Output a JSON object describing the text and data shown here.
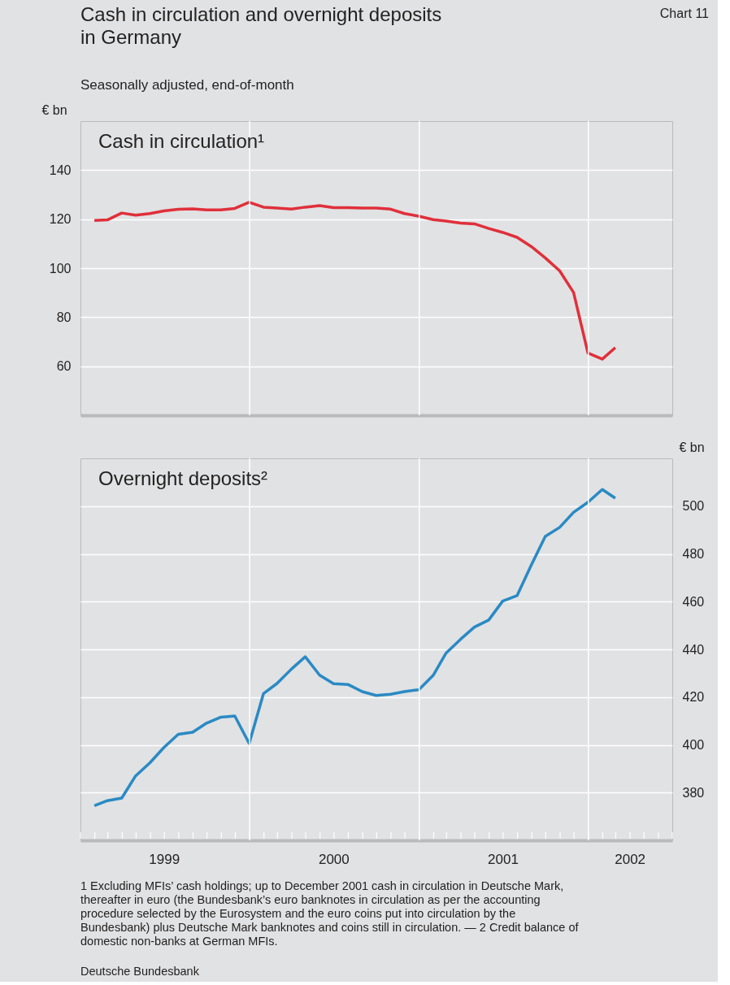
{
  "chart_data": [
    {
      "type": "line",
      "title": "Cash in circulation and overnight deposits in Germany",
      "subtitle": "Seasonally adjusted, end-of-month",
      "ylabel": "€ bn",
      "annotations": [
        "Chart 11"
      ],
      "x": [
        "1999-01-31",
        "1999-02-28",
        "1999-03-31",
        "1999-04-30",
        "1999-05-31",
        "1999-06-30",
        "1999-07-31",
        "1999-08-31",
        "1999-09-30",
        "1999-10-31",
        "1999-11-30",
        "1999-12-31",
        "2000-01-31",
        "2000-02-29",
        "2000-03-31",
        "2000-04-30",
        "2000-05-31",
        "2000-06-30",
        "2000-07-31",
        "2000-08-31",
        "2000-09-30",
        "2000-10-31",
        "2000-11-30",
        "2000-12-31",
        "2001-01-31",
        "2001-02-28",
        "2001-03-31",
        "2001-04-30",
        "2001-05-31",
        "2001-06-30",
        "2001-07-31",
        "2001-08-31",
        "2001-09-30",
        "2001-10-31",
        "2001-11-30",
        "2001-12-31",
        "2002-01-31",
        "2002-02-28"
      ],
      "series": [
        {
          "name": "Cash in circulation¹",
          "color": "#e0303a",
          "values": [
            119.5,
            119.7,
            122.5,
            121.6,
            122.3,
            123.4,
            124.0,
            124.2,
            123.8,
            123.8,
            124.4,
            126.9,
            124.9,
            124.5,
            124.1,
            124.9,
            125.5,
            124.7,
            124.7,
            124.5,
            124.5,
            124.1,
            122.3,
            121.2,
            119.8,
            119.2,
            118.4,
            118.1,
            116.2,
            114.6,
            112.6,
            108.8,
            104.2,
            98.9,
            90.1,
            65.4,
            62.9,
            67.6
          ]
        }
      ],
      "xlim": [
        "1999-01-01",
        "2002-07-01"
      ],
      "ylim": [
        40,
        160
      ],
      "yticks": [
        60,
        80,
        100,
        120,
        140
      ],
      "grid": true,
      "tick_labels": "y"
    },
    {
      "type": "line",
      "ylabel": "€ bn",
      "annotations": [
        "1 Excluding MFIs’ cash holdings; up to December 2001 cash in circulation in Deutsche Mark, thereafter in euro (the Bundesbank’s euro banknotes in circulation as per the accounting procedure selected by the Eurosystem and the euro coins put into circulation by the Bundesbank) plus Deutsche Mark banknotes and coins still in circulation. — 2 Credit balance of domestic non-banks at German MFIs.",
        "Deutsche Bundesbank"
      ],
      "x": [
        "1999-01-31",
        "1999-02-28",
        "1999-03-31",
        "1999-04-30",
        "1999-05-31",
        "1999-06-30",
        "1999-07-31",
        "1999-08-31",
        "1999-09-30",
        "1999-10-31",
        "1999-11-30",
        "1999-12-31",
        "2000-01-31",
        "2000-02-29",
        "2000-03-31",
        "2000-04-30",
        "2000-05-31",
        "2000-06-30",
        "2000-07-31",
        "2000-08-31",
        "2000-09-30",
        "2000-10-31",
        "2000-11-30",
        "2000-12-31",
        "2001-01-31",
        "2001-02-28",
        "2001-03-31",
        "2001-04-30",
        "2001-05-31",
        "2001-06-30",
        "2001-07-31",
        "2001-08-31",
        "2001-09-30",
        "2001-10-31",
        "2001-11-30",
        "2001-12-31",
        "2002-01-31",
        "2002-02-28"
      ],
      "series": [
        {
          "name": "Overnight deposits²",
          "color": "#2a8ac4",
          "values": [
            374.5,
            376.6,
            377.7,
            387.0,
            392.5,
            398.9,
            404.4,
            405.3,
            409.1,
            411.6,
            412.1,
            400.6,
            421.5,
            425.7,
            431.7,
            436.9,
            429.2,
            425.6,
            425.3,
            422.3,
            420.7,
            421.2,
            422.3,
            423.1,
            429.1,
            438.5,
            444.2,
            449.3,
            452.3,
            460.2,
            462.5,
            475.4,
            487.3,
            491.1,
            497.4,
            501.6,
            507.0,
            503.3
          ]
        }
      ],
      "xlim": [
        "1999-01-01",
        "2002-07-01"
      ],
      "ylim": [
        360,
        520
      ],
      "yticks": [
        380,
        400,
        420,
        440,
        460,
        480,
        500
      ],
      "xticks": [
        {
          "value": "1999-01-01",
          "label": null
        },
        {
          "value": "1999-02-01",
          "label": null
        },
        {
          "value": "1999-03-01",
          "label": null
        },
        {
          "value": "1999-04-01",
          "label": null
        },
        {
          "value": "1999-05-01",
          "label": null
        },
        {
          "value": "1999-06-01",
          "label": null
        },
        {
          "value": "1999-07-01",
          "label": "1999"
        },
        {
          "value": "1999-08-01",
          "label": null
        },
        {
          "value": "1999-09-01",
          "label": null
        },
        {
          "value": "1999-10-01",
          "label": null
        },
        {
          "value": "1999-11-01",
          "label": null
        },
        {
          "value": "1999-12-01",
          "label": null
        },
        {
          "value": "2000-01-01",
          "label": null
        },
        {
          "value": "2000-02-01",
          "label": null
        },
        {
          "value": "2000-03-01",
          "label": null
        },
        {
          "value": "2000-04-01",
          "label": null
        },
        {
          "value": "2000-05-01",
          "label": null
        },
        {
          "value": "2000-06-01",
          "label": null
        },
        {
          "value": "2000-07-01",
          "label": "2000"
        },
        {
          "value": "2000-08-01",
          "label": null
        },
        {
          "value": "2000-09-01",
          "label": null
        },
        {
          "value": "2000-10-01",
          "label": null
        },
        {
          "value": "2000-11-01",
          "label": null
        },
        {
          "value": "2000-12-01",
          "label": null
        },
        {
          "value": "2001-01-01",
          "label": null
        },
        {
          "value": "2001-02-01",
          "label": null
        },
        {
          "value": "2001-03-01",
          "label": null
        },
        {
          "value": "2001-04-01",
          "label": null
        },
        {
          "value": "2001-05-01",
          "label": null
        },
        {
          "value": "2001-06-01",
          "label": null
        },
        {
          "value": "2001-07-01",
          "label": "2001"
        },
        {
          "value": "2001-08-01",
          "label": null
        },
        {
          "value": "2001-09-01",
          "label": null
        },
        {
          "value": "2001-10-01",
          "label": null
        },
        {
          "value": "2001-11-01",
          "label": null
        },
        {
          "value": "2001-12-01",
          "label": null
        },
        {
          "value": "2002-01-01",
          "label": null
        },
        {
          "value": "2002-02-01",
          "label": null
        },
        {
          "value": "2002-03-01",
          "label": null
        },
        {
          "value": "2002-04-01",
          "label": "2002"
        },
        {
          "value": "2002-05-01",
          "label": null
        },
        {
          "value": "2002-06-01",
          "label": null
        },
        {
          "value": "2002-07-01",
          "label": null
        }
      ],
      "grid": true
    }
  ]
}
